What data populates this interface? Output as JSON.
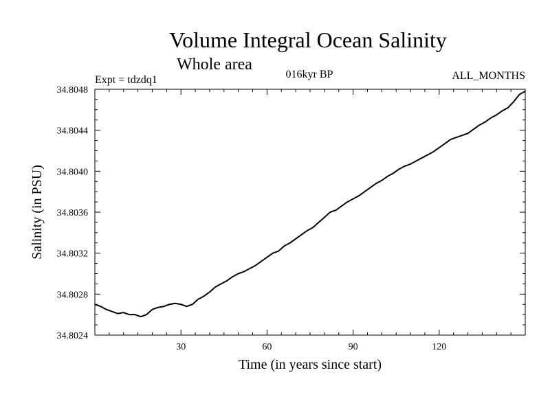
{
  "chart_data": {
    "type": "line",
    "title": "Volume Integral Ocean Salinity",
    "subtitle": "Whole area",
    "experiment_label": "Expt = tdzdq1",
    "period_label": "016kyr BP",
    "months_label": "ALL_MONTHS",
    "xlabel": "Time (in years since start)",
    "ylabel": "Salinity (in PSU)",
    "xlim": [
      0,
      150
    ],
    "ylim": [
      34.8024,
      34.8048
    ],
    "x_ticks": [
      30,
      60,
      90,
      120
    ],
    "x_tick_labels": [
      "30",
      "60",
      "90",
      "120"
    ],
    "y_ticks": [
      34.8024,
      34.8028,
      34.8032,
      34.8036,
      34.804,
      34.8044,
      34.8048
    ],
    "y_tick_labels": [
      "34.8024",
      "34.8028",
      "34.8032",
      "34.8036",
      "34.8040",
      "34.8044",
      "34.8048"
    ],
    "series": [
      {
        "name": "Salinity",
        "color": "#000000",
        "x": [
          0,
          2,
          4,
          6,
          8,
          10,
          12,
          14,
          16,
          18,
          20,
          22,
          24,
          26,
          28,
          30,
          32,
          34,
          36,
          38,
          40,
          42,
          44,
          46,
          48,
          50,
          52,
          54,
          56,
          58,
          60,
          62,
          64,
          66,
          68,
          70,
          72,
          74,
          76,
          78,
          80,
          82,
          84,
          86,
          88,
          90,
          92,
          94,
          96,
          98,
          100,
          102,
          104,
          106,
          108,
          110,
          112,
          114,
          116,
          118,
          120,
          122,
          124,
          126,
          128,
          130,
          132,
          134,
          136,
          138,
          140,
          142,
          144,
          146,
          148,
          150
        ],
        "values": [
          34.8027,
          34.80268,
          34.80265,
          34.80263,
          34.80261,
          34.80262,
          34.8026,
          34.8026,
          34.80258,
          34.8026,
          34.80265,
          34.80267,
          34.80268,
          34.8027,
          34.80271,
          34.8027,
          34.80268,
          34.8027,
          34.80275,
          34.80278,
          34.80282,
          34.80287,
          34.8029,
          34.80293,
          34.80297,
          34.803,
          34.80302,
          34.80305,
          34.80308,
          34.80312,
          34.80316,
          34.8032,
          34.80322,
          34.80327,
          34.8033,
          34.80334,
          34.80338,
          34.80342,
          34.80345,
          34.8035,
          34.80355,
          34.8036,
          34.80362,
          34.80366,
          34.8037,
          34.80373,
          34.80376,
          34.8038,
          34.80384,
          34.80388,
          34.80391,
          34.80395,
          34.80398,
          34.80402,
          34.80405,
          34.80407,
          34.8041,
          34.80413,
          34.80416,
          34.80419,
          34.80423,
          34.80427,
          34.80431,
          34.80433,
          34.80435,
          34.80437,
          34.80441,
          34.80445,
          34.80448,
          34.80452,
          34.80455,
          34.80459,
          34.80462,
          34.80468,
          34.80475,
          34.80478
        ]
      }
    ]
  }
}
